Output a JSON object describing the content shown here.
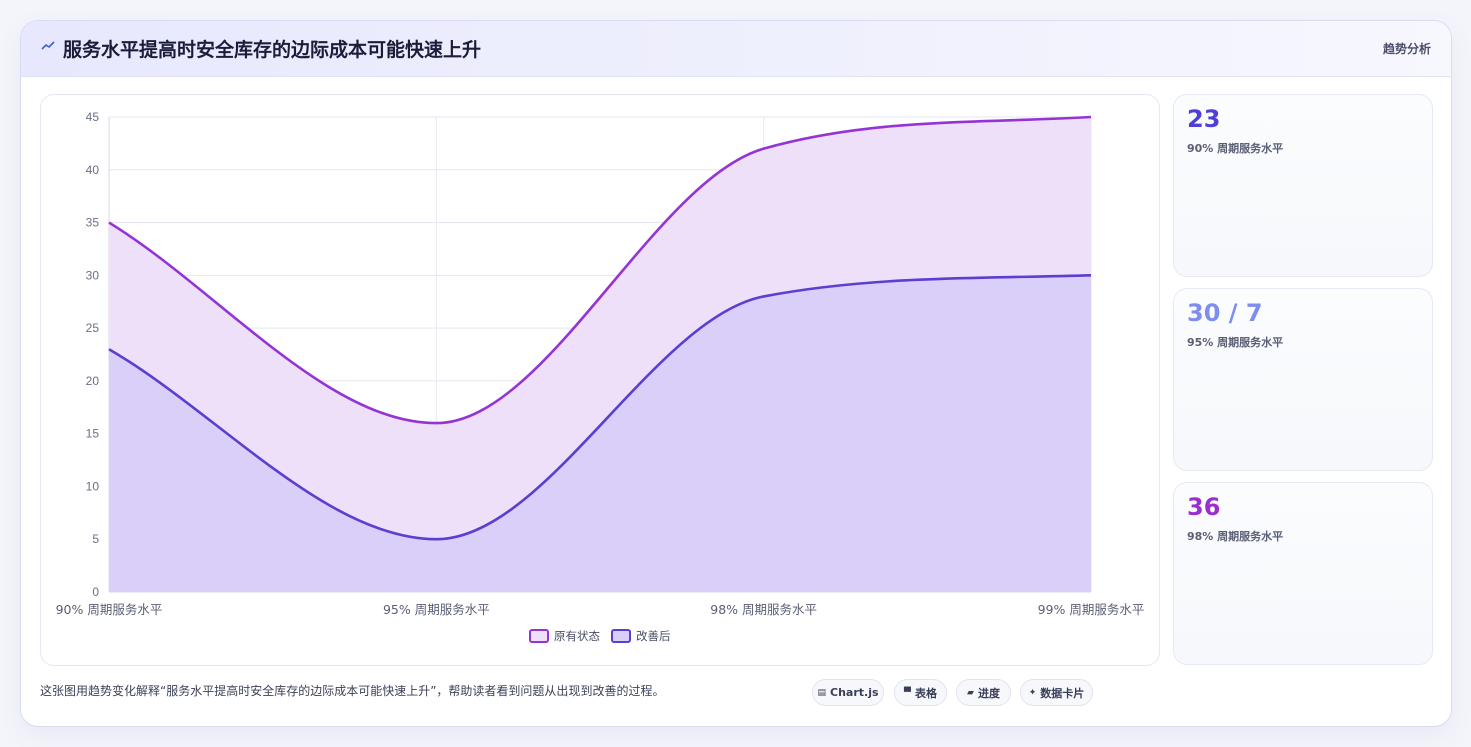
{
  "header": {
    "title": "服务水平提高时安全库存的边际成本可能快速上升",
    "tag": "趋势分析"
  },
  "chart_data": {
    "type": "area",
    "categories": [
      "90% 周期服务水平",
      "95% 周期服务水平",
      "98% 周期服务水平",
      "99% 周期服务水平"
    ],
    "series": [
      {
        "name": "原有状态",
        "values": [
          35,
          16,
          42,
          45
        ],
        "color": "#9434d6",
        "fill": "#eee0f9"
      },
      {
        "name": "改善后",
        "values": [
          23,
          5,
          28,
          30
        ],
        "color": "#5a3fd0",
        "fill": "#dacff9"
      }
    ],
    "ylim": [
      0,
      45
    ],
    "yticks": [
      "0",
      "5",
      "10",
      "15",
      "20",
      "25",
      "30",
      "35",
      "40",
      "45"
    ],
    "grid": true,
    "legend": "bottom"
  },
  "stats": [
    {
      "value": "23",
      "label": "90% 周期服务水平",
      "color": "#4f3fd6"
    },
    {
      "value": "30 / 7",
      "label": "95% 周期服务水平",
      "color": "#7d8ef0"
    },
    {
      "value": "36",
      "label": "98% 周期服务水平",
      "color": "#9a2fd0"
    }
  ],
  "footer": {
    "text": "这张图用趋势变化解释“服务水平提高时安全库存的边际成本可能快速上升”，帮助读者看到问题从出现到改善的过程。",
    "chips": [
      {
        "icon": "▤",
        "label": "Chart.js"
      },
      {
        "icon": "▀",
        "label": "表格"
      },
      {
        "icon": "▰",
        "label": "进度"
      },
      {
        "icon": "✦",
        "label": "数据卡片"
      }
    ]
  }
}
